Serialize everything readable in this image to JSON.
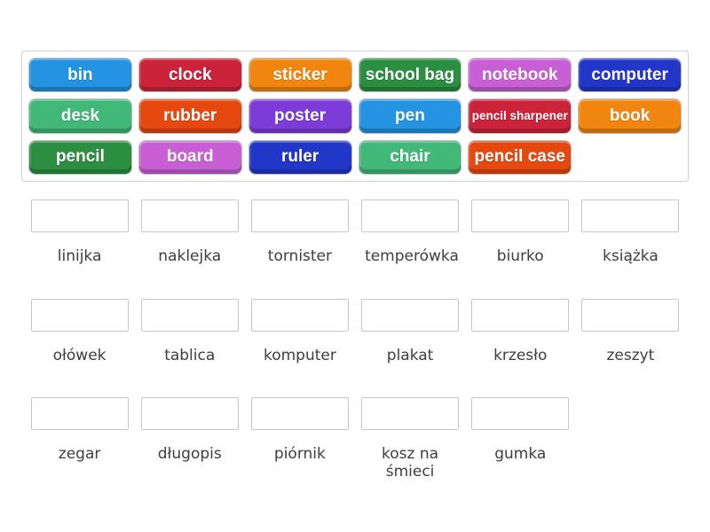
{
  "page": {
    "background_color": "#ffffff"
  },
  "word_bank": {
    "tiles": [
      {
        "label": "bin",
        "color": "#2493e2"
      },
      {
        "label": "clock",
        "color": "#cb2339"
      },
      {
        "label": "sticker",
        "color": "#f0860f"
      },
      {
        "label": "school bag",
        "color": "#2b8e41"
      },
      {
        "label": "notebook",
        "color": "#c95fd4"
      },
      {
        "label": "computer",
        "color": "#2237c8"
      },
      {
        "label": "desk",
        "color": "#41b878"
      },
      {
        "label": "rubber",
        "color": "#e6490f"
      },
      {
        "label": "poster",
        "color": "#7d3bd8"
      },
      {
        "label": "pen",
        "color": "#2493e2"
      },
      {
        "label": "pencil sharpener",
        "color": "#cb2339"
      },
      {
        "label": "book",
        "color": "#f0860f"
      },
      {
        "label": "pencil",
        "color": "#2b8e41"
      },
      {
        "label": "board",
        "color": "#c95fd4"
      },
      {
        "label": "ruler",
        "color": "#2237c8"
      },
      {
        "label": "chair",
        "color": "#41b878"
      },
      {
        "label": "pencil case",
        "color": "#e6490f"
      }
    ]
  },
  "answer_slots": {
    "labels": [
      "linijka",
      "naklejka",
      "tornister",
      "temperówka",
      "biurko",
      "książka",
      "ołówek",
      "tablica",
      "komputer",
      "plakat",
      "krzesło",
      "zeszyt",
      "zegar",
      "długopis",
      "piórnik",
      "kosz na śmieci",
      "gumka"
    ]
  }
}
